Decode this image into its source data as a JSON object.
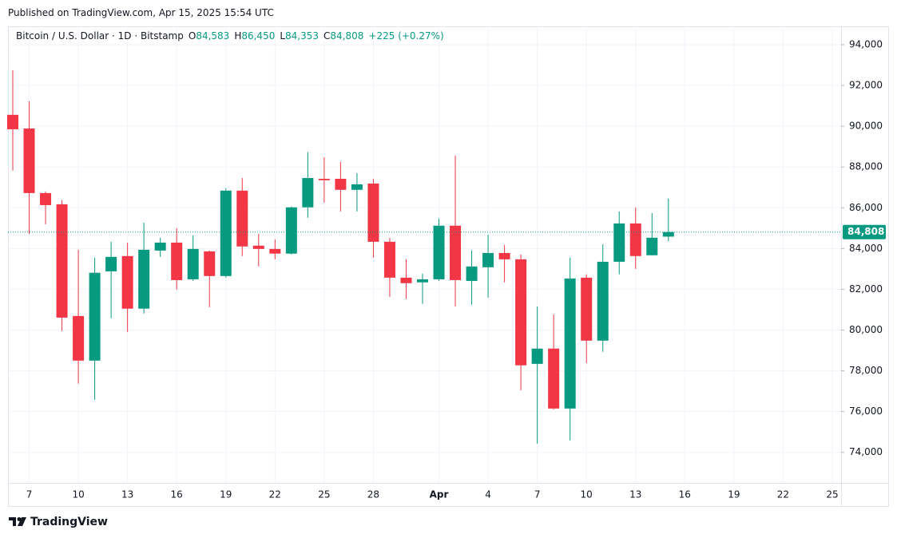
{
  "published": "Published on TradingView.com, Apr 15, 2025 15:54 UTC",
  "footer": "TradingView",
  "chart_data": {
    "type": "candlestick",
    "title": "Bitcoin / U.S. Dollar · 1D · Bitstamp",
    "ohlc_legend": [
      {
        "key": "O",
        "value": 84583,
        "label": "84,583"
      },
      {
        "key": "H",
        "value": 86450,
        "label": "86,450"
      },
      {
        "key": "L",
        "value": 84353,
        "label": "84,353"
      },
      {
        "key": "C",
        "value": 84808,
        "label": "84,808"
      }
    ],
    "change_label": "+225 (+0.27%)",
    "last_price": {
      "value": 84808,
      "label": "84,808"
    },
    "up_color": "#089981",
    "down_color": "#f23645",
    "x": [
      "2025-03-06",
      "2025-03-07",
      "2025-03-08",
      "2025-03-09",
      "2025-03-10",
      "2025-03-11",
      "2025-03-12",
      "2025-03-13",
      "2025-03-14",
      "2025-03-15",
      "2025-03-16",
      "2025-03-17",
      "2025-03-18",
      "2025-03-19",
      "2025-03-20",
      "2025-03-21",
      "2025-03-22",
      "2025-03-23",
      "2025-03-24",
      "2025-03-25",
      "2025-03-26",
      "2025-03-27",
      "2025-03-28",
      "2025-03-29",
      "2025-03-30",
      "2025-03-31",
      "2025-04-01",
      "2025-04-02",
      "2025-04-03",
      "2025-04-04",
      "2025-04-05",
      "2025-04-06",
      "2025-04-07",
      "2025-04-08",
      "2025-04-09",
      "2025-04-10",
      "2025-04-11",
      "2025-04-12",
      "2025-04-13",
      "2025-04-14",
      "2025-04-15"
    ],
    "open": [
      90560,
      89890,
      86720,
      86170,
      80690,
      78500,
      82880,
      83630,
      81050,
      83900,
      84290,
      82490,
      83860,
      82650,
      86840,
      84140,
      83980,
      83750,
      86020,
      87420,
      87420,
      86880,
      87190,
      84330,
      82570,
      82340,
      82490,
      85120,
      82410,
      83080,
      83780,
      83470,
      78340,
      79090,
      76150,
      82570,
      79480,
      83350,
      85230,
      83670,
      84583
    ],
    "high": [
      92750,
      91220,
      86800,
      86370,
      83940,
      83550,
      84330,
      84290,
      85270,
      84530,
      85000,
      84650,
      83900,
      86960,
      87460,
      84720,
      84450,
      86060,
      88720,
      88480,
      88250,
      87700,
      87420,
      84530,
      83470,
      82770,
      85470,
      88560,
      83900,
      84680,
      84180,
      83710,
      81160,
      80770,
      83550,
      82730,
      84210,
      85820,
      86020,
      85740,
      86450
    ],
    "low": [
      87820,
      84720,
      85190,
      79950,
      77370,
      76580,
      80580,
      79910,
      80810,
      83590,
      81980,
      82410,
      81120,
      82570,
      83630,
      83120,
      83470,
      83710,
      85510,
      86250,
      85820,
      85820,
      83550,
      81630,
      81520,
      81280,
      82410,
      81160,
      81240,
      81590,
      82340,
      77050,
      74430,
      76100,
      74590,
      78380,
      78930,
      82730,
      83000,
      83670,
      84353
    ],
    "close": [
      89850,
      86720,
      86130,
      80610,
      78500,
      82810,
      83590,
      81050,
      83940,
      84290,
      82450,
      83980,
      82650,
      86840,
      84100,
      83980,
      83750,
      86020,
      87460,
      87350,
      86880,
      87150,
      84330,
      82570,
      82300,
      82490,
      85120,
      82450,
      83120,
      83780,
      83470,
      78270,
      79090,
      76150,
      82530,
      79480,
      83350,
      85230,
      83630,
      84530,
      84808
    ],
    "xlim": [
      "2025-03-06",
      "2025-04-25"
    ],
    "xticks": [
      {
        "value": "2025-03-07",
        "label": "7"
      },
      {
        "value": "2025-03-10",
        "label": "10"
      },
      {
        "value": "2025-03-13",
        "label": "13"
      },
      {
        "value": "2025-03-16",
        "label": "16"
      },
      {
        "value": "2025-03-19",
        "label": "19"
      },
      {
        "value": "2025-03-22",
        "label": "22"
      },
      {
        "value": "2025-03-25",
        "label": "25"
      },
      {
        "value": "2025-03-28",
        "label": "28"
      },
      {
        "value": "2025-04-01",
        "label": "Apr"
      },
      {
        "value": "2025-04-04",
        "label": "4"
      },
      {
        "value": "2025-04-07",
        "label": "7"
      },
      {
        "value": "2025-04-10",
        "label": "10"
      },
      {
        "value": "2025-04-13",
        "label": "13"
      },
      {
        "value": "2025-04-16",
        "label": "16"
      },
      {
        "value": "2025-04-19",
        "label": "19"
      },
      {
        "value": "2025-04-22",
        "label": "22"
      },
      {
        "value": "2025-04-25",
        "label": "25"
      }
    ],
    "ylim": [
      72500,
      94900
    ],
    "yticks": [
      {
        "value": 74000,
        "label": "74,000"
      },
      {
        "value": 76000,
        "label": "76,000"
      },
      {
        "value": 78000,
        "label": "78,000"
      },
      {
        "value": 80000,
        "label": "80,000"
      },
      {
        "value": 82000,
        "label": "82,000"
      },
      {
        "value": 84000,
        "label": "84,000"
      },
      {
        "value": 86000,
        "label": "86,000"
      },
      {
        "value": 88000,
        "label": "88,000"
      },
      {
        "value": 90000,
        "label": "90,000"
      },
      {
        "value": 92000,
        "label": "92,000"
      },
      {
        "value": 94000,
        "label": "94,000"
      }
    ],
    "grid": true
  }
}
